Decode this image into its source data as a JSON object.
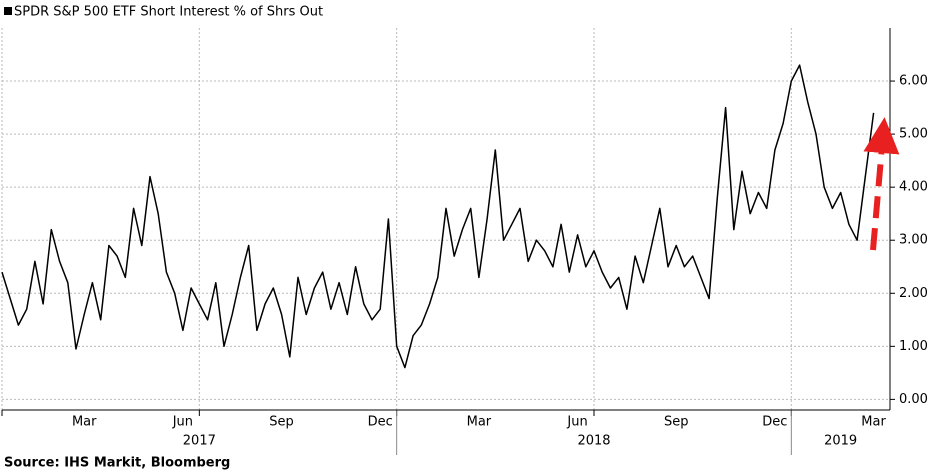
{
  "chart_data": {
    "type": "line",
    "legend": "SPDR S&P 500 ETF Short Interest % of Shrs Out",
    "source": "Source: IHS Markit, Bloomberg",
    "series": [
      {
        "name": "SPDR S&P 500 ETF Short Interest % of Shrs Out",
        "color": "#000000",
        "x": [
          0,
          0.25,
          0.5,
          0.75,
          1,
          1.25,
          1.5,
          1.75,
          2,
          2.25,
          2.5,
          2.75,
          3,
          3.25,
          3.5,
          3.75,
          4,
          4.25,
          4.5,
          4.75,
          5,
          5.25,
          5.5,
          5.75,
          6,
          6.25,
          6.5,
          6.75,
          7,
          7.25,
          7.5,
          7.75,
          8,
          8.25,
          8.5,
          8.75,
          9,
          9.25,
          9.5,
          9.75,
          10,
          10.25,
          10.5,
          10.75,
          11,
          11.25,
          11.5,
          11.75,
          12,
          12.25,
          12.5,
          12.75,
          13,
          13.25,
          13.5,
          13.75,
          14,
          14.25,
          14.5,
          14.75,
          15,
          15.25,
          15.5,
          15.75,
          16,
          16.25,
          16.5,
          16.75,
          17,
          17.25,
          17.5,
          17.75,
          18,
          18.25,
          18.5,
          18.75,
          19,
          19.25,
          19.5,
          19.75,
          20,
          20.25,
          20.5,
          20.75,
          21,
          21.25,
          21.5,
          21.75,
          22,
          22.25,
          22.5,
          22.75,
          23,
          23.25,
          23.5,
          23.75,
          24,
          24.25,
          24.5,
          24.75,
          25,
          25.25,
          25.5,
          25.75,
          26,
          26.25,
          26.5
        ],
        "values": [
          2.4,
          1.9,
          1.4,
          1.7,
          2.6,
          1.8,
          3.2,
          2.6,
          2.2,
          0.95,
          1.6,
          2.2,
          1.5,
          2.9,
          2.7,
          2.3,
          3.6,
          2.9,
          4.2,
          3.5,
          2.4,
          2.0,
          1.3,
          2.1,
          1.8,
          1.5,
          2.2,
          1.0,
          1.6,
          2.3,
          2.9,
          1.3,
          1.8,
          2.1,
          1.6,
          0.8,
          2.3,
          1.6,
          2.1,
          2.4,
          1.7,
          2.2,
          1.6,
          2.5,
          1.8,
          1.5,
          1.7,
          3.4,
          1.0,
          0.6,
          1.2,
          1.4,
          1.8,
          2.3,
          3.6,
          2.7,
          3.2,
          3.6,
          2.3,
          3.4,
          4.7,
          3.0,
          3.3,
          3.6,
          2.6,
          3.0,
          2.8,
          2.5,
          3.3,
          2.4,
          3.1,
          2.5,
          2.8,
          2.4,
          2.1,
          2.3,
          1.7,
          2.7,
          2.2,
          2.9,
          3.6,
          2.5,
          2.9,
          2.5,
          2.7,
          2.3,
          1.9,
          3.8,
          5.5,
          3.2,
          4.3,
          3.5,
          3.9,
          3.6,
          4.7,
          5.2,
          6.0,
          6.3,
          5.6,
          5.0,
          4.0,
          3.6,
          3.9,
          3.3,
          3.0,
          4.2,
          5.4
        ]
      }
    ],
    "xlim": [
      0,
      27
    ],
    "xticks": [
      {
        "value": 2.5,
        "label": "Mar"
      },
      {
        "value": 5.5,
        "label": "Jun"
      },
      {
        "value": 8.5,
        "label": "Sep"
      },
      {
        "value": 11.5,
        "label": "Dec"
      },
      {
        "value": 14.5,
        "label": "Mar"
      },
      {
        "value": 17.5,
        "label": "Jun"
      },
      {
        "value": 20.5,
        "label": "Sep"
      },
      {
        "value": 23.5,
        "label": "Dec"
      },
      {
        "value": 26.5,
        "label": "Mar"
      }
    ],
    "year_labels": [
      {
        "value": 6,
        "label": "2017"
      },
      {
        "value": 18,
        "label": "2018"
      },
      {
        "value": 25.5,
        "label": "2019"
      }
    ],
    "xgrid": [
      0,
      6,
      12,
      18,
      24
    ],
    "ylim": [
      -0.2,
      7
    ],
    "yticks": [
      {
        "value": 0,
        "label": "0.00"
      },
      {
        "value": 1,
        "label": "1.00"
      },
      {
        "value": 2,
        "label": "2.00"
      },
      {
        "value": 3,
        "label": "3.00"
      },
      {
        "value": 4,
        "label": "4.00"
      },
      {
        "value": 5,
        "label": "5.00"
      },
      {
        "value": 6,
        "label": "6.00"
      }
    ],
    "grid": true
  }
}
